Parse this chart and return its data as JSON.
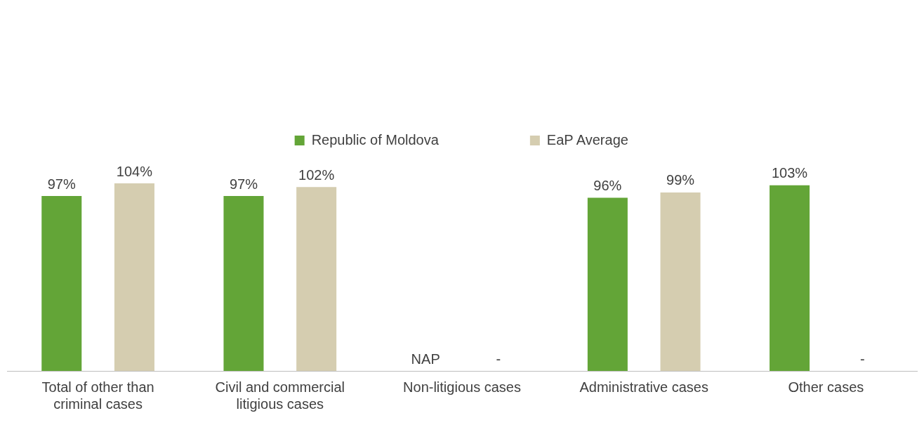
{
  "chart_data": {
    "type": "bar",
    "categories": [
      "Total of other than criminal cases",
      "Civil and commercial litigious cases",
      "Non-litigious cases",
      "Administrative cases",
      "Other cases"
    ],
    "series": [
      {
        "name": "Republic of Moldova",
        "color": "#63a537",
        "values": [
          97,
          97,
          null,
          96,
          103
        ],
        "value_labels": [
          "97%",
          "97%",
          "NAP",
          "96%",
          "103%"
        ]
      },
      {
        "name": "EaP Average",
        "color": "#d5cdb0",
        "values": [
          104,
          102,
          null,
          99,
          null
        ],
        "value_labels": [
          "104%",
          "102%",
          "-",
          "99%",
          "-"
        ]
      }
    ],
    "tick_labels": "x",
    "grid": false,
    "legend": "top"
  }
}
